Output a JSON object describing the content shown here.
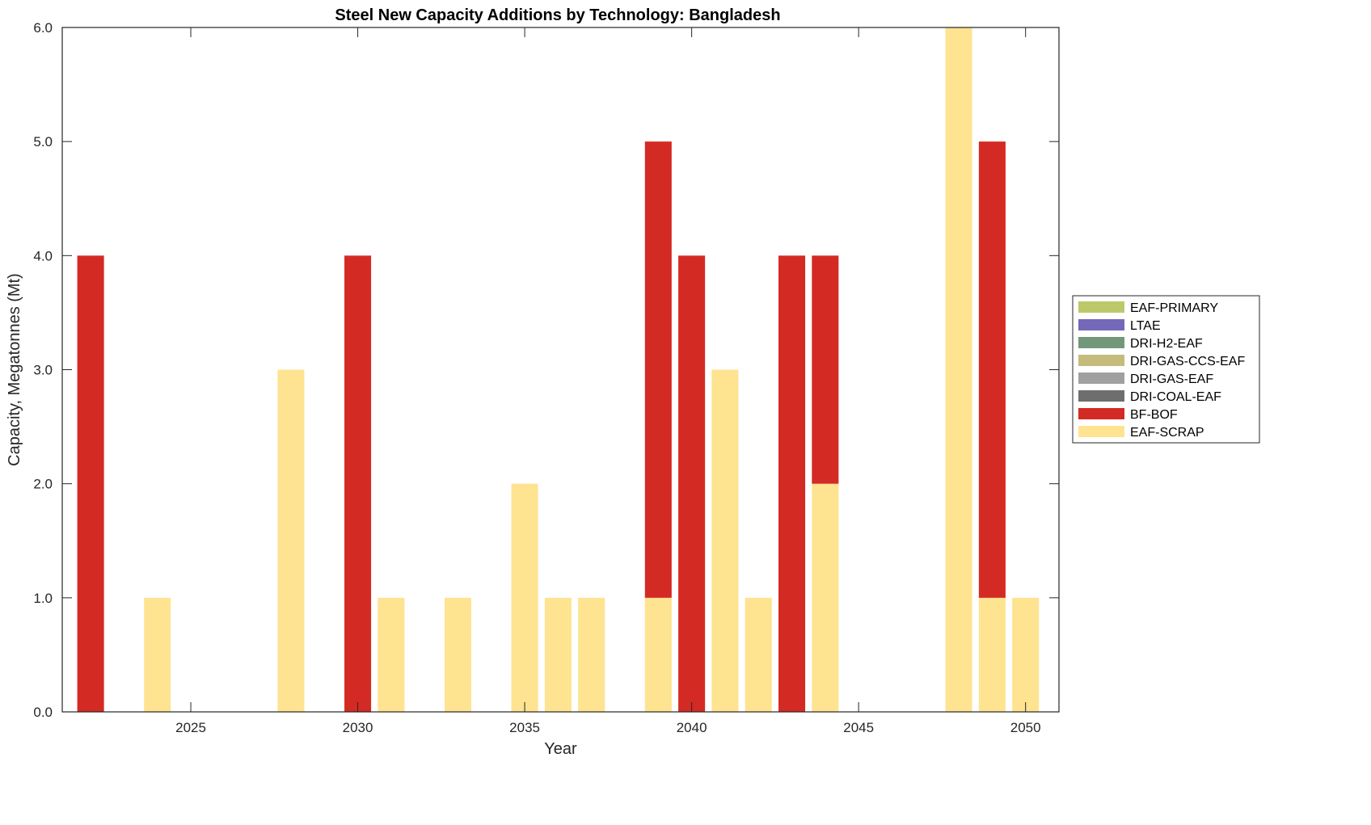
{
  "chart_data": {
    "type": "bar",
    "stacked": true,
    "title": "Steel New Capacity Additions by Technology: Bangladesh",
    "xlabel": "Year",
    "ylabel": "Capacity, Megatonnes (Mt)",
    "xlim": [
      2021.15,
      2051.0
    ],
    "ylim": [
      0,
      6
    ],
    "xticks": [
      2025,
      2030,
      2035,
      2040,
      2045,
      2050
    ],
    "xtick_labels": [
      "2025",
      "2030",
      "2035",
      "2040",
      "2045",
      "2050"
    ],
    "yticks": [
      0,
      1,
      2,
      3,
      4,
      5,
      6
    ],
    "ytick_labels": [
      "0.0",
      "1.0",
      "2.0",
      "3.0",
      "4.0",
      "5.0",
      "6.0"
    ],
    "grid": false,
    "legend_position": "outside-right",
    "x": [
      2022,
      2024,
      2028,
      2030,
      2031,
      2033,
      2035,
      2036,
      2037,
      2039,
      2040,
      2041,
      2042,
      2043,
      2044,
      2048,
      2049,
      2050
    ],
    "series": [
      {
        "name": "EAF-SCRAP",
        "color": "#FEE391",
        "values": [
          0,
          1,
          3,
          0,
          1,
          1,
          2,
          1,
          1,
          1,
          0,
          3,
          1,
          0,
          2,
          6,
          1,
          1
        ]
      },
      {
        "name": "BF-BOF",
        "color": "#D42A24",
        "values": [
          4,
          0,
          0,
          4,
          0,
          0,
          0,
          0,
          0,
          4,
          4,
          0,
          0,
          4,
          2,
          0,
          4,
          0
        ]
      },
      {
        "name": "DRI-COAL-EAF",
        "color": "#6E6E6E",
        "values": [
          0,
          0,
          0,
          0,
          0,
          0,
          0,
          0,
          0,
          0,
          0,
          0,
          0,
          0,
          0,
          0,
          0,
          0
        ]
      },
      {
        "name": "DRI-GAS-EAF",
        "color": "#A0A0A0",
        "values": [
          0,
          0,
          0,
          0,
          0,
          0,
          0,
          0,
          0,
          0,
          0,
          0,
          0,
          0,
          0,
          0,
          0,
          0
        ]
      },
      {
        "name": "DRI-GAS-CCS-EAF",
        "color": "#C4BB7C",
        "values": [
          0,
          0,
          0,
          0,
          0,
          0,
          0,
          0,
          0,
          0,
          0,
          0,
          0,
          0,
          0,
          0,
          0,
          0
        ]
      },
      {
        "name": "DRI-H2-EAF",
        "color": "#72977A",
        "values": [
          0,
          0,
          0,
          0,
          0,
          0,
          0,
          0,
          0,
          0,
          0,
          0,
          0,
          0,
          0,
          0,
          0,
          0
        ]
      },
      {
        "name": "LTAE",
        "color": "#7468B8",
        "values": [
          0,
          0,
          0,
          0,
          0,
          0,
          0,
          0,
          0,
          0,
          0,
          0,
          0,
          0,
          0,
          0,
          0,
          0
        ]
      },
      {
        "name": "EAF-PRIMARY",
        "color": "#BDC86A",
        "values": [
          0,
          0,
          0,
          0,
          0,
          0,
          0,
          0,
          0,
          0,
          0,
          0,
          0,
          0,
          0,
          0,
          0,
          0
        ]
      }
    ],
    "legend_order": [
      "EAF-PRIMARY",
      "LTAE",
      "DRI-H2-EAF",
      "DRI-GAS-CCS-EAF",
      "DRI-GAS-EAF",
      "DRI-COAL-EAF",
      "BF-BOF",
      "EAF-SCRAP"
    ]
  }
}
